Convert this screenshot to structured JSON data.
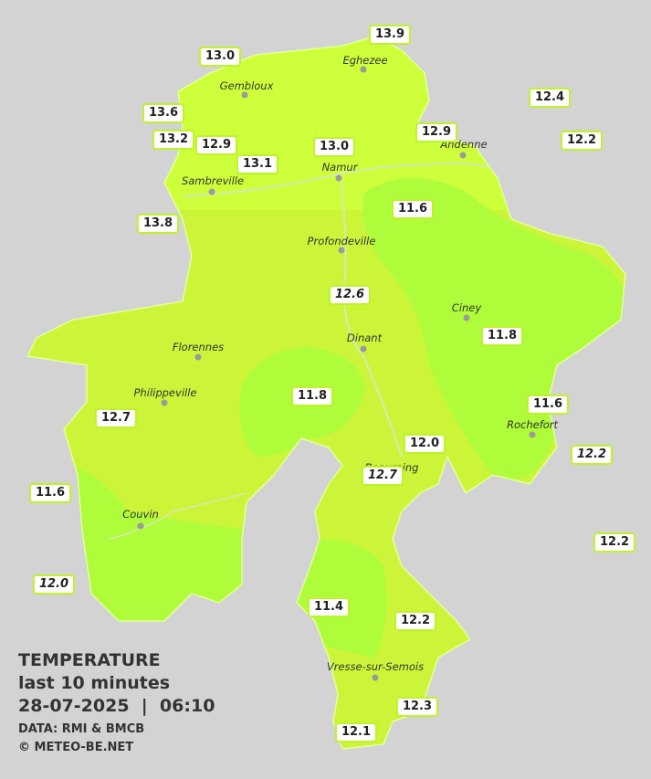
{
  "legend": {
    "title": "TEMPERATURE",
    "subtitle": "last 10 minutes",
    "datetime": "28-07-2025  |  06:10",
    "source": "DATA: RMI & BMCB",
    "copyright": "© METEO-BE.NET"
  },
  "cities": [
    "Eghezee",
    "Gembloux",
    "Andenne",
    "Namur",
    "Sambreville",
    "Profondeville",
    "Ciney",
    "Dinant",
    "Florennes",
    "Philippeville",
    "Rochefort",
    "Beauraing",
    "Couvin",
    "Vresse-sur-Semois"
  ],
  "stations": [
    "13.9",
    "13.0",
    "12.4",
    "13.6",
    "13.2",
    "12.9",
    "12.9",
    "12.2",
    "13.0",
    "13.1",
    "13.8",
    "11.6",
    "12.6",
    "11.8",
    "11.8",
    "11.6",
    "12.7",
    "12.0",
    "12.2",
    "12.7",
    "11.6",
    "12.2",
    "12.0",
    "11.4",
    "12.2",
    "12.3",
    "12.1"
  ]
}
